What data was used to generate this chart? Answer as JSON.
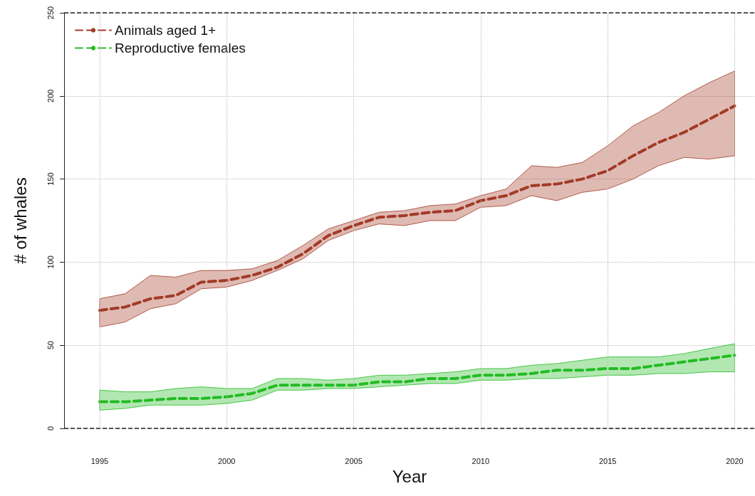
{
  "chart_data": {
    "type": "line",
    "xlabel": "Year",
    "ylabel": "# of whales",
    "x": [
      1995,
      1996,
      1997,
      1998,
      1999,
      2000,
      2001,
      2002,
      2003,
      2004,
      2005,
      2006,
      2007,
      2008,
      2009,
      2010,
      2011,
      2012,
      2013,
      2014,
      2015,
      2016,
      2017,
      2018,
      2019,
      2020
    ],
    "series": [
      {
        "name": "Animals aged 1+",
        "color": "#a23a26",
        "values": [
          71,
          73,
          78,
          80,
          88,
          89,
          92,
          97,
          105,
          116,
          122,
          127,
          128,
          130,
          131,
          137,
          140,
          146,
          147,
          150,
          155,
          164,
          172,
          178,
          186,
          194
        ],
        "lower": [
          61,
          64,
          72,
          75,
          84,
          85,
          89,
          95,
          102,
          113,
          119,
          123,
          122,
          125,
          125,
          133,
          134,
          140,
          137,
          142,
          144,
          150,
          158,
          163,
          162,
          164
        ],
        "upper": [
          78,
          81,
          92,
          91,
          95,
          95,
          96,
          101,
          110,
          120,
          125,
          130,
          131,
          134,
          135,
          140,
          144,
          158,
          157,
          160,
          170,
          182,
          190,
          200,
          208,
          215
        ]
      },
      {
        "name": "Reproductive females",
        "color": "#22bb22",
        "values": [
          16,
          16,
          17,
          18,
          18,
          19,
          21,
          26,
          26,
          26,
          26,
          28,
          28,
          30,
          30,
          32,
          32,
          33,
          35,
          35,
          36,
          36,
          38,
          40,
          42,
          44
        ],
        "lower": [
          11,
          12,
          14,
          14,
          14,
          15,
          17,
          23,
          23,
          24,
          24,
          25,
          26,
          27,
          27,
          29,
          29,
          30,
          30,
          31,
          32,
          32,
          33,
          33,
          34,
          34
        ],
        "upper": [
          23,
          22,
          22,
          24,
          25,
          24,
          24,
          30,
          30,
          29,
          30,
          32,
          32,
          33,
          34,
          36,
          36,
          38,
          39,
          41,
          43,
          43,
          43,
          45,
          48,
          51
        ]
      }
    ],
    "xlim": [
      1993.6,
      2020.8
    ],
    "xticks": [
      1995,
      2000,
      2005,
      2010,
      2015,
      2020
    ],
    "ylim": [
      0,
      250
    ],
    "yticks": [
      0,
      50,
      100,
      150,
      200,
      250
    ],
    "grid": true,
    "legend": "top left",
    "line_style": "dashed",
    "marker": "none"
  }
}
